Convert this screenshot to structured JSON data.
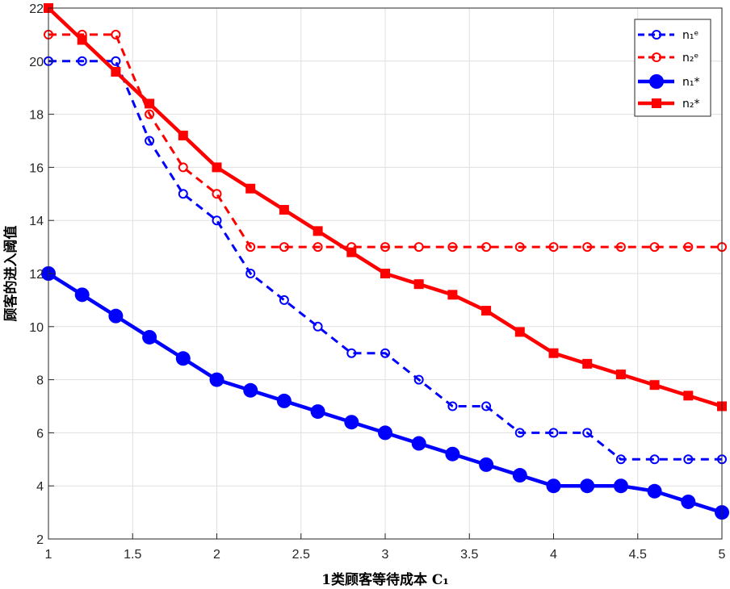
{
  "chart_data": {
    "type": "line",
    "xlabel": "1类顾客等待成本 C₁",
    "ylabel": "顾客的进入阈值",
    "xlim": [
      1,
      5
    ],
    "ylim": [
      2,
      22
    ],
    "xticks": [
      "1",
      "1.5",
      "2",
      "2.5",
      "3",
      "3.5",
      "4",
      "4.5",
      "5"
    ],
    "yticks": [
      "2",
      "4",
      "6",
      "8",
      "10",
      "12",
      "14",
      "16",
      "18",
      "20",
      "22"
    ],
    "grid": true,
    "legend_position": "top-right",
    "x": [
      1,
      1.2,
      1.4,
      1.6,
      1.8,
      2,
      2.2,
      2.4,
      2.6,
      2.8,
      3,
      3.2,
      3.4,
      3.6,
      3.8,
      4,
      4.2,
      4.4,
      4.6,
      4.8,
      5
    ],
    "series": [
      {
        "name": "n₁ᵉ",
        "color": "#0000ff",
        "style": "dashed",
        "marker": "open-circle",
        "values": [
          20,
          20,
          20,
          17,
          15,
          14,
          12,
          11,
          10,
          9,
          9,
          8,
          7,
          7,
          6,
          6,
          6,
          5,
          5,
          5,
          5
        ]
      },
      {
        "name": "n₂ᵉ",
        "color": "#ff0000",
        "style": "dashed",
        "marker": "open-circle",
        "values": [
          21,
          21,
          21,
          18,
          16,
          15,
          13,
          13,
          13,
          13,
          13,
          13,
          13,
          13,
          13,
          13,
          13,
          13,
          13,
          13,
          13
        ]
      },
      {
        "name": "n₁*",
        "color": "#0000ff",
        "style": "solid",
        "marker": "filled-circle",
        "values": [
          12,
          11.2,
          10.4,
          9.6,
          8.8,
          8,
          7.6,
          7.2,
          6.8,
          6.4,
          6,
          5.6,
          5.2,
          4.8,
          4.4,
          4,
          4,
          4,
          3.8,
          3.4,
          3
        ]
      },
      {
        "name": "n₂*",
        "color": "#ff0000",
        "style": "solid",
        "marker": "filled-square",
        "values": [
          22,
          20.8,
          19.6,
          18.4,
          17.2,
          16,
          15.2,
          14.4,
          13.6,
          12.8,
          12,
          11.6,
          11.2,
          10.6,
          9.8,
          9,
          8.6,
          8.2,
          7.8,
          7.4,
          7
        ]
      }
    ]
  }
}
